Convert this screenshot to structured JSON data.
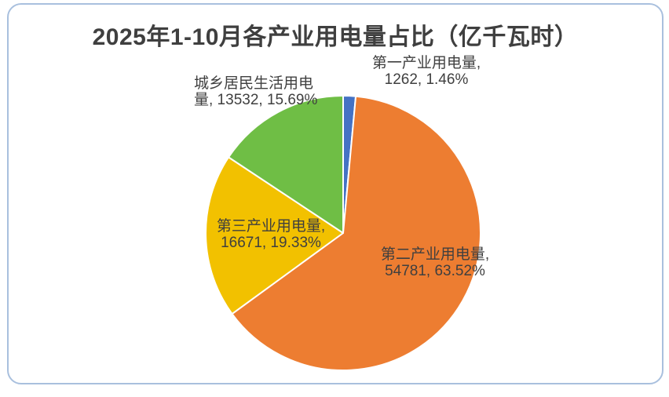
{
  "title": "2025年1-10月各产业用电量占比（亿千瓦时）",
  "chart_data": {
    "type": "pie",
    "title": "2025年1-10月各产业用电量占比（亿千瓦时）",
    "unit": "亿千瓦时",
    "categories": [
      "第一产业用电量",
      "第二产业用电量",
      "第三产业用电量",
      "城乡居民生活用电量"
    ],
    "values": [
      1262,
      54781,
      16671,
      13532
    ],
    "percentages": [
      "1.46%",
      "63.52%",
      "19.33%",
      "15.69%"
    ],
    "colors": [
      "#4472c4",
      "#ed7d31",
      "#f2c100",
      "#6fbe45"
    ],
    "slice_ids": [
      "primary-industry",
      "secondary-industry",
      "tertiary-industry",
      "residential"
    ],
    "start_angle_deg": 0,
    "direction": "clockwise",
    "legend": "none",
    "label_style": "category, value, percent",
    "label_positions": [
      "outside-top",
      "inside",
      "inside",
      "outside-top-left"
    ]
  },
  "labels": {
    "primary": {
      "line1": "第一产业用电量,",
      "line2": "1262, 1.46%"
    },
    "residential": {
      "line1": "城乡居民生活用电",
      "line2": "量, 13532, 15.69%"
    },
    "tertiary": {
      "line1": "第三产业用电量,",
      "line2": "16671, 19.33%"
    },
    "secondary": {
      "line1": "第二产业用电量,",
      "line2": "54781, 63.52%"
    }
  },
  "style": {
    "card_border_color": "#a9c0de",
    "title_color": "#3f3f3f",
    "label_color": "#3f3f3f",
    "slice_stroke": "#ffffff"
  }
}
